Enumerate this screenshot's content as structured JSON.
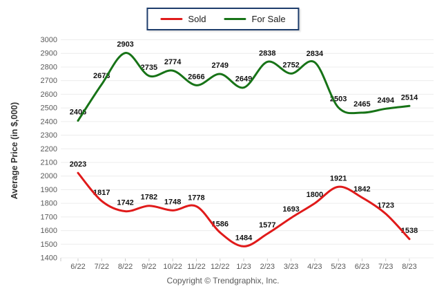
{
  "chart_data": {
    "type": "line",
    "title": "",
    "categories": [
      "6/22",
      "7/22",
      "8/22",
      "9/22",
      "10/22",
      "11/22",
      "12/22",
      "1/23",
      "2/23",
      "3/23",
      "4/23",
      "5/23",
      "6/23",
      "7/23",
      "8/23"
    ],
    "series": [
      {
        "name": "Sold",
        "color": "#e01a1a",
        "values": [
          2023,
          1817,
          1742,
          1782,
          1748,
          1778,
          1586,
          1484,
          1577,
          1693,
          1800,
          1921,
          1842,
          1723,
          1538
        ]
      },
      {
        "name": "For Sale",
        "color": "#177317",
        "values": [
          2406,
          2673,
          2903,
          2735,
          2774,
          2666,
          2749,
          2649,
          2838,
          2752,
          2834,
          2503,
          2465,
          2494,
          2514
        ]
      }
    ],
    "xlabel": "",
    "ylabel": "Average Price (in $,000)",
    "ylim": [
      1400,
      3000
    ],
    "ytick_step": 100,
    "grid": true,
    "legend_position": "top-center",
    "point_labels_shown": true
  },
  "footer": {
    "copyright": "Copyright © Trendgraphix, Inc."
  },
  "colors": {
    "grid": "#ececec",
    "tick_text": "#595959",
    "point_label": "#111111",
    "legend_border": "#1d3c6b",
    "axis_title": "#333333",
    "tick_mark": "#c9c9c9"
  }
}
